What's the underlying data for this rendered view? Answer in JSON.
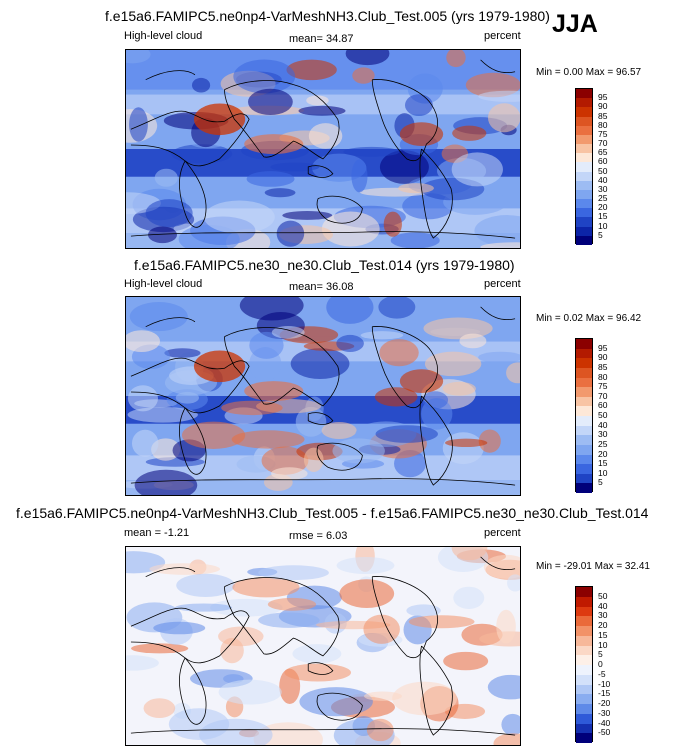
{
  "season": "JJA",
  "panels": [
    {
      "title": "f.e15a6.FAMIPC5.ne0np4-VarMeshNH3.Club_Test.005 (yrs 1979-1980)",
      "left_label": "High-level cloud",
      "center_label": "mean=  34.87",
      "right_label": "percent",
      "minmax": "Min =  0.00 Max =  96.57",
      "cbar_labels": [
        "95",
        "90",
        "85",
        "80",
        "75",
        "70",
        "65",
        "60",
        "50",
        "40",
        "30",
        "25",
        "20",
        "15",
        "10",
        "5"
      ],
      "cbar_colors": [
        "#8b0000",
        "#b31a00",
        "#cc3300",
        "#dd5522",
        "#ea7040",
        "#f29a6e",
        "#f8c4a4",
        "#fde8d8",
        "#e3ecfb",
        "#c3d6f8",
        "#9dbcf3",
        "#7fa6f0",
        "#5b88ec",
        "#3a66e0",
        "#1f43c4",
        "#0c24a8",
        "#00007a"
      ]
    },
    {
      "title": "f.e15a6.FAMIPC5.ne30_ne30.Club_Test.014 (yrs 1979-1980)",
      "left_label": "High-level cloud",
      "center_label": "mean=  36.08",
      "right_label": "percent",
      "minmax": "Min =  0.02 Max =  96.42",
      "cbar_labels": [
        "95",
        "90",
        "85",
        "80",
        "75",
        "70",
        "60",
        "50",
        "40",
        "30",
        "25",
        "20",
        "15",
        "10",
        "5"
      ],
      "cbar_colors": [
        "#8b0000",
        "#b31a00",
        "#cc3300",
        "#dd5522",
        "#ea7040",
        "#f29a6e",
        "#f8c4a4",
        "#fde8d8",
        "#e3ecfb",
        "#c3d6f8",
        "#9dbcf3",
        "#7fa6f0",
        "#5b88ec",
        "#3a66e0",
        "#1f43c4",
        "#00007a"
      ]
    },
    {
      "title": "f.e15a6.FAMIPC5.ne0np4-VarMeshNH3.Club_Test.005 - f.e15a6.FAMIPC5.ne30_ne30.Club_Test.014",
      "left_label": "mean =  -1.21",
      "center_label": "rmse =   6.03",
      "right_label": "percent",
      "minmax": "Min = -29.01 Max =  32.41",
      "cbar_labels": [
        "50",
        "40",
        "30",
        "20",
        "15",
        "10",
        "5",
        "0",
        "-5",
        "-10",
        "-15",
        "-20",
        "-30",
        "-40",
        "-50"
      ],
      "cbar_colors": [
        "#8b0000",
        "#c01a00",
        "#dd3a10",
        "#ea6a3a",
        "#f29268",
        "#f7b89a",
        "#fbd8c6",
        "#fdf0e8",
        "#eef3fd",
        "#d3e1fa",
        "#b0c8f5",
        "#8aadf0",
        "#5f8ae8",
        "#2f5ad8",
        "#1530b0",
        "#00007a"
      ]
    }
  ],
  "chart_data": [
    {
      "type": "heatmap",
      "title": "f.e15a6.FAMIPC5.ne0np4-VarMeshNH3.Club_Test.005 (yrs 1979-1980)",
      "variable": "High-level cloud",
      "units": "percent",
      "season": "JJA",
      "mean": 34.87,
      "min": 0.0,
      "max": 96.57,
      "contour_levels": [
        5,
        10,
        15,
        20,
        25,
        30,
        40,
        50,
        60,
        65,
        70,
        75,
        80,
        85,
        90,
        95
      ]
    },
    {
      "type": "heatmap",
      "title": "f.e15a6.FAMIPC5.ne30_ne30.Club_Test.014 (yrs 1979-1980)",
      "variable": "High-level cloud",
      "units": "percent",
      "season": "JJA",
      "mean": 36.08,
      "min": 0.02,
      "max": 96.42,
      "contour_levels": [
        5,
        10,
        15,
        20,
        25,
        30,
        40,
        50,
        60,
        70,
        75,
        80,
        85,
        90,
        95
      ]
    },
    {
      "type": "heatmap",
      "title": "f.e15a6.FAMIPC5.ne0np4-VarMeshNH3.Club_Test.005 - f.e15a6.FAMIPC5.ne30_ne30.Club_Test.014",
      "units": "percent",
      "season": "JJA",
      "mean": -1.21,
      "rmse": 6.03,
      "min": -29.01,
      "max": 32.41,
      "contour_levels": [
        -50,
        -40,
        -30,
        -20,
        -15,
        -10,
        -5,
        0,
        5,
        10,
        15,
        20,
        30,
        40,
        50
      ]
    }
  ]
}
